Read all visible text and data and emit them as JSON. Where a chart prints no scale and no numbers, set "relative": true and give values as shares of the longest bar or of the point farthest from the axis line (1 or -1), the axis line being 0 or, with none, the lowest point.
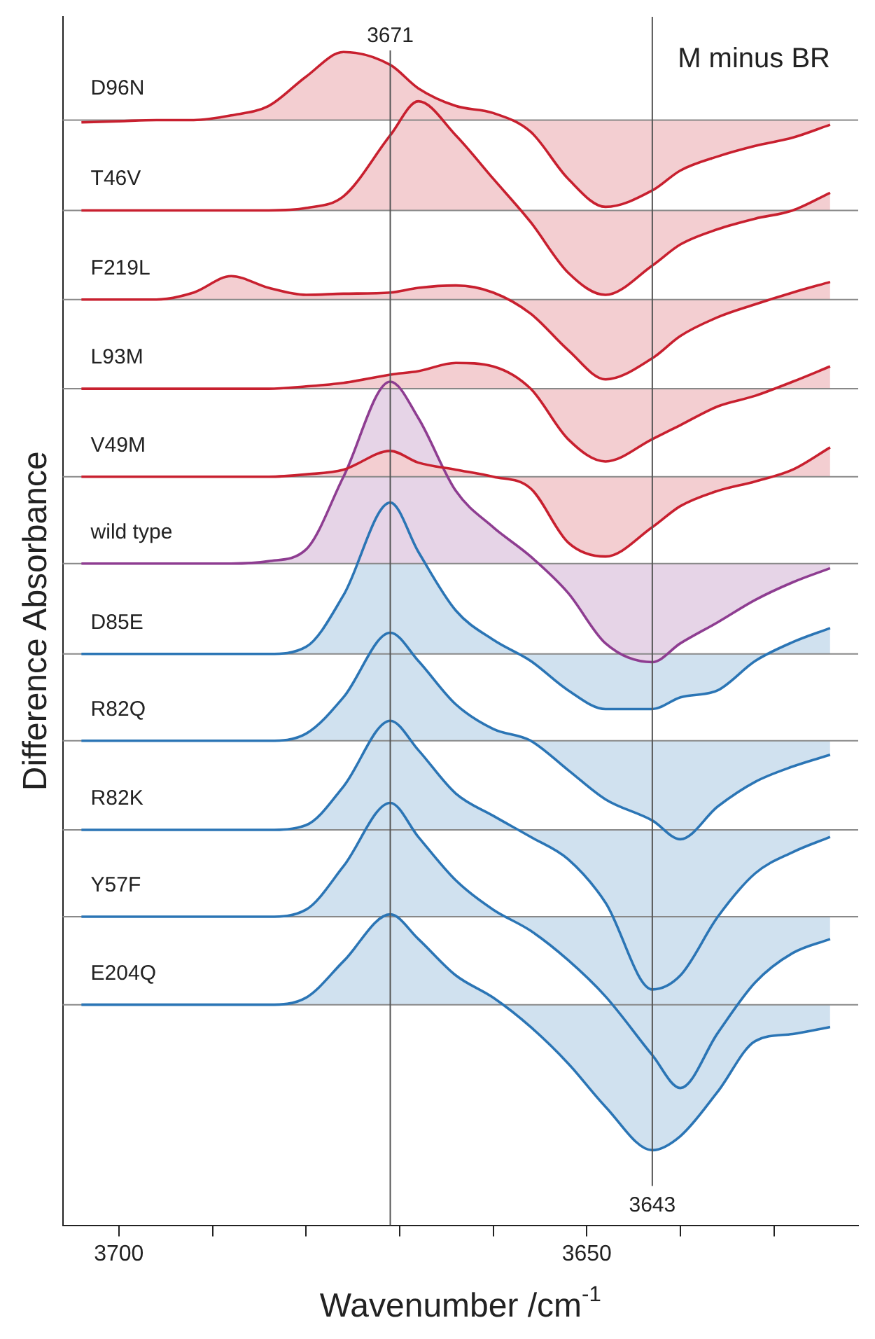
{
  "chart_data": {
    "type": "line",
    "title": "M minus BR",
    "xlabel": "Wavenumber /cm$^{-1}$",
    "ylabel": "Difference Absorbance",
    "relative": true,
    "legend": false,
    "grid": false,
    "x": [
      3704,
      3700,
      3696,
      3692,
      3688,
      3684,
      3680,
      3676,
      3671,
      3668,
      3664,
      3660,
      3656,
      3652,
      3648,
      3643,
      3640,
      3636,
      3632,
      3628,
      3624
    ],
    "xlim": [
      3706,
      3621
    ],
    "xticks": [
      3700,
      {
        "value": 3690,
        "label": null
      },
      {
        "value": 3680,
        "label": null
      },
      {
        "value": 3670,
        "label": null
      },
      {
        "value": 3660,
        "label": null
      },
      3650,
      {
        "value": 3640,
        "label": null
      },
      {
        "value": 3630,
        "label": null
      }
    ],
    "series": [
      {
        "name": "D96N",
        "color": "#c8202f",
        "values": [
          0.94,
          0.941,
          0.942,
          0.942,
          0.946,
          0.954,
          0.979,
          1.0,
          0.989,
          0.969,
          0.954,
          0.948,
          0.932,
          0.892,
          0.868,
          0.882,
          0.899,
          0.911,
          0.92,
          0.927,
          0.938
        ]
      },
      {
        "name": "T46V",
        "color": "#c8202f",
        "values": [
          0.865,
          0.865,
          0.865,
          0.865,
          0.865,
          0.865,
          0.867,
          0.877,
          0.929,
          0.958,
          0.929,
          0.892,
          0.855,
          0.812,
          0.793,
          0.818,
          0.836,
          0.849,
          0.858,
          0.865,
          0.88
        ]
      },
      {
        "name": "F219L",
        "color": "#c8202f",
        "values": [
          0.789,
          0.789,
          0.789,
          0.795,
          0.809,
          0.799,
          0.793,
          0.794,
          0.795,
          0.799,
          0.801,
          0.795,
          0.777,
          0.746,
          0.721,
          0.739,
          0.758,
          0.774,
          0.785,
          0.795,
          0.804
        ]
      },
      {
        "name": "L93M",
        "color": "#c8202f",
        "values": [
          0.713,
          0.713,
          0.713,
          0.713,
          0.713,
          0.713,
          0.715,
          0.718,
          0.725,
          0.728,
          0.735,
          0.732,
          0.713,
          0.67,
          0.651,
          0.67,
          0.682,
          0.698,
          0.707,
          0.719,
          0.732
        ]
      },
      {
        "name": "V49M",
        "color": "#c8202f",
        "values": [
          0.638,
          0.638,
          0.638,
          0.638,
          0.638,
          0.638,
          0.64,
          0.644,
          0.66,
          0.65,
          0.644,
          0.638,
          0.628,
          0.582,
          0.57,
          0.595,
          0.613,
          0.626,
          0.634,
          0.644,
          0.663
        ]
      },
      {
        "name": "wild type",
        "color": "#8e3d91",
        "values": [
          0.564,
          0.564,
          0.564,
          0.564,
          0.564,
          0.566,
          0.576,
          0.638,
          0.719,
          0.688,
          0.626,
          0.595,
          0.57,
          0.539,
          0.496,
          0.48,
          0.496,
          0.514,
          0.533,
          0.548,
          0.56
        ]
      },
      {
        "name": "D85E",
        "color": "#2b75b5",
        "values": [
          0.487,
          0.487,
          0.487,
          0.487,
          0.487,
          0.487,
          0.493,
          0.537,
          0.616,
          0.574,
          0.524,
          0.499,
          0.481,
          0.456,
          0.44,
          0.44,
          0.45,
          0.456,
          0.481,
          0.497,
          0.509
        ]
      },
      {
        "name": "R82Q",
        "color": "#2b75b5",
        "values": [
          0.413,
          0.413,
          0.413,
          0.413,
          0.413,
          0.413,
          0.419,
          0.45,
          0.505,
          0.481,
          0.444,
          0.423,
          0.413,
          0.388,
          0.363,
          0.345,
          0.329,
          0.357,
          0.378,
          0.391,
          0.401
        ]
      },
      {
        "name": "R82K",
        "color": "#2b75b5",
        "values": [
          0.337,
          0.337,
          0.337,
          0.337,
          0.337,
          0.337,
          0.341,
          0.374,
          0.43,
          0.405,
          0.368,
          0.349,
          0.331,
          0.312,
          0.275,
          0.201,
          0.213,
          0.263,
          0.3,
          0.318,
          0.331
        ]
      },
      {
        "name": "Y57F",
        "color": "#2b75b5",
        "values": [
          0.263,
          0.263,
          0.263,
          0.263,
          0.263,
          0.263,
          0.269,
          0.306,
          0.36,
          0.331,
          0.294,
          0.269,
          0.251,
          0.226,
          0.195,
          0.145,
          0.117,
          0.164,
          0.207,
          0.232,
          0.244
        ]
      },
      {
        "name": "E204Q",
        "color": "#2b75b5",
        "values": [
          0.188,
          0.188,
          0.188,
          0.188,
          0.188,
          0.188,
          0.194,
          0.225,
          0.265,
          0.244,
          0.213,
          0.194,
          0.169,
          0.138,
          0.101,
          0.064,
          0.076,
          0.114,
          0.157,
          0.163,
          0.169
        ]
      }
    ],
    "ref_lines": [
      {
        "axis": "y",
        "value": 0.942,
        "color": "#888888"
      },
      {
        "axis": "y",
        "value": 0.865,
        "color": "#888888"
      },
      {
        "axis": "y",
        "value": 0.789,
        "color": "#888888"
      },
      {
        "axis": "y",
        "value": 0.713,
        "color": "#888888"
      },
      {
        "axis": "y",
        "value": 0.638,
        "color": "#888888"
      },
      {
        "axis": "y",
        "value": 0.564,
        "color": "#888888"
      },
      {
        "axis": "y",
        "value": 0.487,
        "color": "#888888"
      },
      {
        "axis": "y",
        "value": 0.413,
        "color": "#888888"
      },
      {
        "axis": "y",
        "value": 0.337,
        "color": "#888888"
      },
      {
        "axis": "y",
        "value": 0.263,
        "color": "#888888"
      },
      {
        "axis": "y",
        "value": 0.188,
        "color": "#888888"
      },
      {
        "axis": "x",
        "value": 3671,
        "label": "3671",
        "color": "#555555"
      },
      {
        "axis": "x",
        "value": 3643,
        "label": "3643",
        "color": "#555555"
      }
    ]
  }
}
